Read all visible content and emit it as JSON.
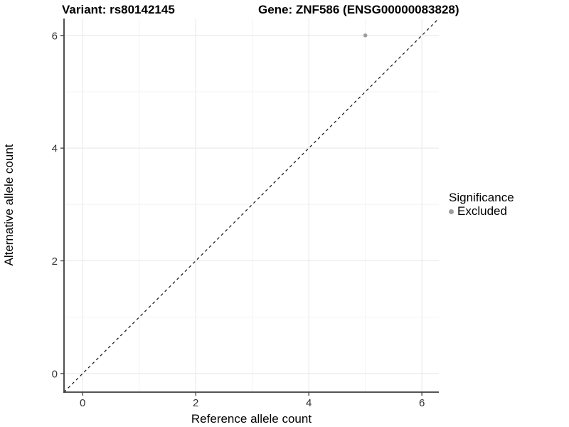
{
  "figure": {
    "title_left": "Variant: rs80142145",
    "title_right": "Gene: ZNF586 (ENSG00000083828)"
  },
  "chart_data": {
    "type": "scatter",
    "title_left": "Variant: rs80142145",
    "title_right": "Gene: ZNF586 (ENSG00000083828)",
    "xlabel": "Reference allele count",
    "ylabel": "Alternative allele count",
    "xlim": [
      -0.33,
      6.3
    ],
    "ylim": [
      -0.33,
      6.3
    ],
    "x_major_ticks": [
      0,
      2,
      4,
      6
    ],
    "y_major_ticks": [
      0,
      2,
      4,
      6
    ],
    "x_minor_ticks": [
      1,
      3,
      5
    ],
    "y_minor_ticks": [
      1,
      3,
      5
    ],
    "grid": true,
    "identity_line": {
      "show": true,
      "style": "dashed"
    },
    "series": [
      {
        "name": "Excluded",
        "color": "#9e9e9e",
        "points": [
          {
            "x": 5,
            "y": 6
          }
        ]
      }
    ],
    "legend": {
      "title": "Significance",
      "position": "right",
      "entries": [
        {
          "label": "Excluded",
          "color": "#9e9e9e"
        }
      ]
    }
  },
  "colors": {
    "background": "#ffffff",
    "grid_major": "#e7e7e7",
    "grid_minor": "#f3f3f3",
    "axis_line": "#3d3d3d",
    "tick_label": "#333333",
    "identity_line": "#111111",
    "text": "#000000"
  }
}
